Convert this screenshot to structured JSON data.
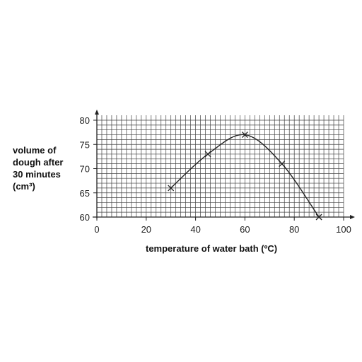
{
  "chart_data": {
    "type": "line",
    "xlabel": "temperature of water bath (ºC)",
    "ylabel_lines": [
      "volume of",
      "dough after",
      "30 minutes",
      "(cm³)"
    ],
    "xlim": [
      0,
      100
    ],
    "ylim": [
      60,
      80
    ],
    "x_ticks": [
      0,
      20,
      40,
      60,
      80,
      100
    ],
    "x_tick_labels": [
      "0",
      "20",
      "40",
      "60",
      "80",
      "100"
    ],
    "y_ticks": [
      60,
      65,
      70,
      75,
      80
    ],
    "y_tick_labels": [
      "60",
      "65",
      "70",
      "75",
      "80"
    ],
    "grid": true,
    "series": [
      {
        "x": [
          30,
          45,
          60,
          75,
          90
        ],
        "y": [
          66,
          73,
          77,
          71,
          60
        ],
        "marker": "cross",
        "line": "smooth"
      }
    ],
    "colors": {
      "ink": "#222222",
      "grid": "#444444",
      "background": "#ffffff"
    }
  }
}
